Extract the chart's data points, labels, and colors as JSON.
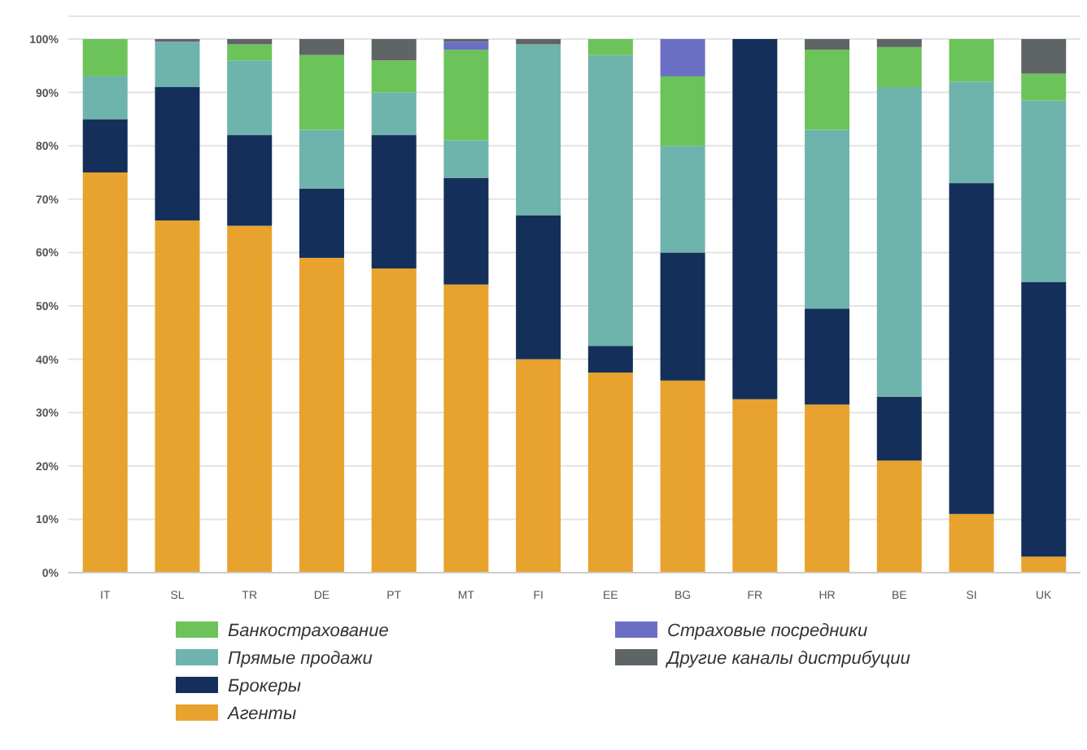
{
  "chart_data": {
    "type": "bar",
    "stacked": true,
    "categories": [
      "IT",
      "SL",
      "TR",
      "DE",
      "PT",
      "MT",
      "FI",
      "EE",
      "BG",
      "FR",
      "HR",
      "BE",
      "SI",
      "UK"
    ],
    "series": [
      {
        "name": "Агенты",
        "color": "#e8a22e",
        "values": [
          75,
          66,
          65,
          59,
          57,
          54,
          40,
          37.5,
          36,
          32.5,
          31.5,
          21,
          11,
          3
        ]
      },
      {
        "name": "Брокеры",
        "color": "#14305a",
        "values": [
          10,
          25,
          17,
          13,
          25,
          20,
          27,
          5,
          24,
          67.5,
          18,
          12,
          62,
          51.5
        ]
      },
      {
        "name": "Прямые продажи",
        "color": "#6fb3ad",
        "values": [
          8,
          8.5,
          14,
          11,
          8,
          7,
          32,
          54.5,
          20,
          0,
          33.5,
          58,
          19,
          34
        ]
      },
      {
        "name": "Банкострахование",
        "color": "#6cc35a",
        "values": [
          7,
          0,
          3,
          14,
          6,
          17,
          0,
          3,
          13,
          0,
          15,
          7.5,
          8,
          5
        ]
      },
      {
        "name": "Страховые посредники",
        "color": "#6b6fc4",
        "values": [
          0,
          0,
          0,
          0,
          0,
          1.5,
          0,
          0,
          7,
          0,
          0,
          0,
          0,
          0
        ]
      },
      {
        "name": "Другие каналы дистрибуции",
        "color": "#5f6466",
        "values": [
          0,
          0.5,
          1,
          3,
          4,
          0.5,
          1,
          0,
          0,
          0,
          2,
          1.5,
          0,
          6.5
        ]
      }
    ],
    "ylim": [
      0,
      100
    ],
    "yticks": [
      {
        "value": 0,
        "label": "0%"
      },
      {
        "value": 10,
        "label": "10%"
      },
      {
        "value": 20,
        "label": "20%"
      },
      {
        "value": 30,
        "label": "30%"
      },
      {
        "value": 40,
        "label": "40%"
      },
      {
        "value": 50,
        "label": "50%"
      },
      {
        "value": 60,
        "label": "60%"
      },
      {
        "value": 70,
        "label": "70%"
      },
      {
        "value": 80,
        "label": "80%"
      },
      {
        "value": 90,
        "label": "90%"
      },
      {
        "value": 100,
        "label": "100%"
      }
    ],
    "grid": "y",
    "legend": "bottom"
  }
}
